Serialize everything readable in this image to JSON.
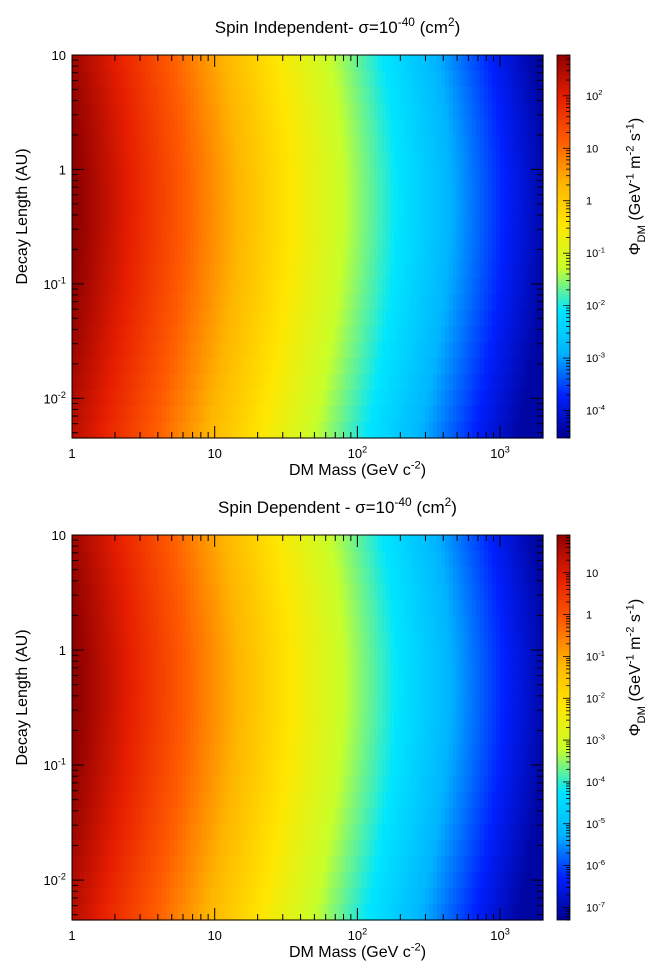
{
  "chart_data": [
    {
      "type": "heatmap",
      "title": "Spin Independent- σ=10^-40 (cm^2)",
      "xlabel": "DM Mass (GeV c^-2)",
      "ylabel": "Decay Length (AU)",
      "zlabel": "Φ_DM (GeV^-1 m^-2 s^-1)",
      "x_scale": "log",
      "y_scale": "log",
      "z_scale": "log",
      "xlim": [
        1,
        2000
      ],
      "ylim": [
        0.0045,
        10
      ],
      "zlim": [
        3e-05,
        600
      ],
      "x_ticks": [
        {
          "value": 1,
          "label": "1"
        },
        {
          "value": 10,
          "label": "10"
        },
        {
          "value": 100,
          "label": "10^2"
        },
        {
          "value": 1000,
          "label": "10^3"
        }
      ],
      "y_ticks": [
        {
          "value": 0.01,
          "label": "10^-2"
        },
        {
          "value": 0.1,
          "label": "10^-1"
        },
        {
          "value": 1,
          "label": "1"
        },
        {
          "value": 10,
          "label": "10"
        }
      ],
      "z_ticks": [
        {
          "value": 0.0001,
          "label": "10^-4"
        },
        {
          "value": 0.001,
          "label": "10^-3"
        },
        {
          "value": 0.01,
          "label": "10^-2"
        },
        {
          "value": 0.1,
          "label": "10^-1"
        },
        {
          "value": 1,
          "label": "1"
        },
        {
          "value": 10,
          "label": "10"
        },
        {
          "value": 100,
          "label": "10^2"
        }
      ],
      "colormap": [
        "#00008f",
        "#0020ff",
        "#00b4ff",
        "#00e6ff",
        "#c8ff2a",
        "#ffe600",
        "#ffb400",
        "#ff5a00",
        "#e61e00",
        "#8f0000"
      ],
      "grid": false,
      "legend": "colorbar-right"
    },
    {
      "type": "heatmap",
      "title": "Spin Dependent - σ=10^-40 (cm^2)",
      "xlabel": "DM Mass (GeV c^-2)",
      "ylabel": "Decay Length (AU)",
      "zlabel": "Φ_DM (GeV^-1 m^-2 s^-1)",
      "x_scale": "log",
      "y_scale": "log",
      "z_scale": "log",
      "xlim": [
        1,
        2000
      ],
      "ylim": [
        0.0045,
        10
      ],
      "zlim": [
        5e-08,
        80
      ],
      "x_ticks": [
        {
          "value": 1,
          "label": "1"
        },
        {
          "value": 10,
          "label": "10"
        },
        {
          "value": 100,
          "label": "10^2"
        },
        {
          "value": 1000,
          "label": "10^3"
        }
      ],
      "y_ticks": [
        {
          "value": 0.01,
          "label": "10^-2"
        },
        {
          "value": 0.1,
          "label": "10^-1"
        },
        {
          "value": 1,
          "label": "1"
        },
        {
          "value": 10,
          "label": "10"
        }
      ],
      "z_ticks": [
        {
          "value": 1e-07,
          "label": "10^-7"
        },
        {
          "value": 1e-06,
          "label": "10^-6"
        },
        {
          "value": 1e-05,
          "label": "10^-5"
        },
        {
          "value": 0.0001,
          "label": "10^-4"
        },
        {
          "value": 0.001,
          "label": "10^-3"
        },
        {
          "value": 0.01,
          "label": "10^-2"
        },
        {
          "value": 0.1,
          "label": "10^-1"
        },
        {
          "value": 1,
          "label": "1"
        },
        {
          "value": 10,
          "label": "10"
        }
      ],
      "colormap": [
        "#00008f",
        "#0020ff",
        "#00b4ff",
        "#00e6ff",
        "#c8ff2a",
        "#ffe600",
        "#ffb400",
        "#ff5a00",
        "#e61e00",
        "#8f0000"
      ],
      "grid": false,
      "legend": "colorbar-right"
    }
  ]
}
